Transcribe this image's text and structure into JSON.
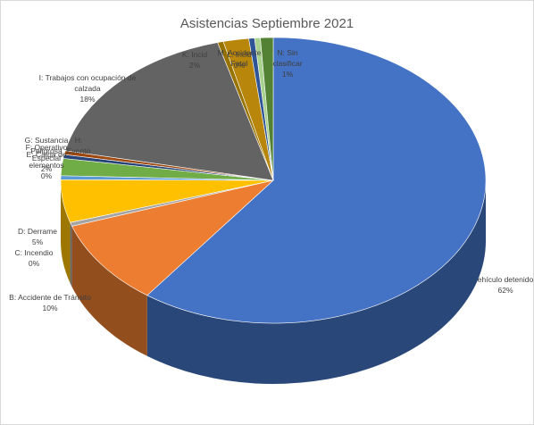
{
  "chart_data": {
    "type": "pie",
    "title": "Asistencias Septiembre 2021",
    "slices": [
      {
        "category": "A: Vehículo detenido",
        "label": "ehículo detenido",
        "value": 62,
        "percent_label": "62%",
        "color": "#4472c4"
      },
      {
        "category": "B: Accidente de Tránsito",
        "label": "B: Accidente de Tránsito",
        "value": 10,
        "percent_label": "10%",
        "color": "#ed7d31"
      },
      {
        "category": "C: Incendio",
        "label": "C: Incendio",
        "value": 0,
        "percent_label": "0%",
        "color": "#a5a5a5"
      },
      {
        "category": "D: Derrame",
        "label": "D: Derrame",
        "value": 5,
        "percent_label": "5%",
        "color": "#ffc000"
      },
      {
        "category": "E: Caída de elementos",
        "label": "E: Caída de elementos",
        "value": 0,
        "percent_label": "0%",
        "color": "#5b9bd5"
      },
      {
        "category": "F: Operativo Especial",
        "label": "F: Operativo Especial",
        "value": 2,
        "percent_label": "2%",
        "color": "#70ad47"
      },
      {
        "category": "G: Sustancia Peligrosa",
        "label": "G: Sustancia Peligrosa",
        "value": 0,
        "percent_label": "",
        "color": "#264478"
      },
      {
        "category": "H: Evento",
        "label": "H: Evento",
        "value": 0,
        "percent_label": "",
        "color": "#9e480e"
      },
      {
        "category": "I: Trabajos con ocupación de calzada",
        "label": "I: Trabajos con ocupación de calzada",
        "value": 18,
        "percent_label": "18%",
        "color": "#636363"
      },
      {
        "category": "J",
        "label": "",
        "value": 0,
        "percent_label": "",
        "color": "#997300"
      },
      {
        "category": "K: Incidente vial",
        "label": "K: Incid",
        "value": 2,
        "percent_label": "2%",
        "color": "#b8860b"
      },
      {
        "category": "L: Incidente",
        "label": "L: Incid",
        "value": 0,
        "percent_label": "0%",
        "color": "#2f5597"
      },
      {
        "category": "M: Accidente Fatal",
        "label": "M: Accidente Fatal",
        "value": 0,
        "percent_label": "",
        "color": "#a9d18e"
      },
      {
        "category": "N: Sin clasificar",
        "label": "N: Sin clasificar",
        "value": 1,
        "percent_label": "1%",
        "color": "#548235"
      }
    ],
    "legend": "none",
    "style": "3d-pie"
  }
}
